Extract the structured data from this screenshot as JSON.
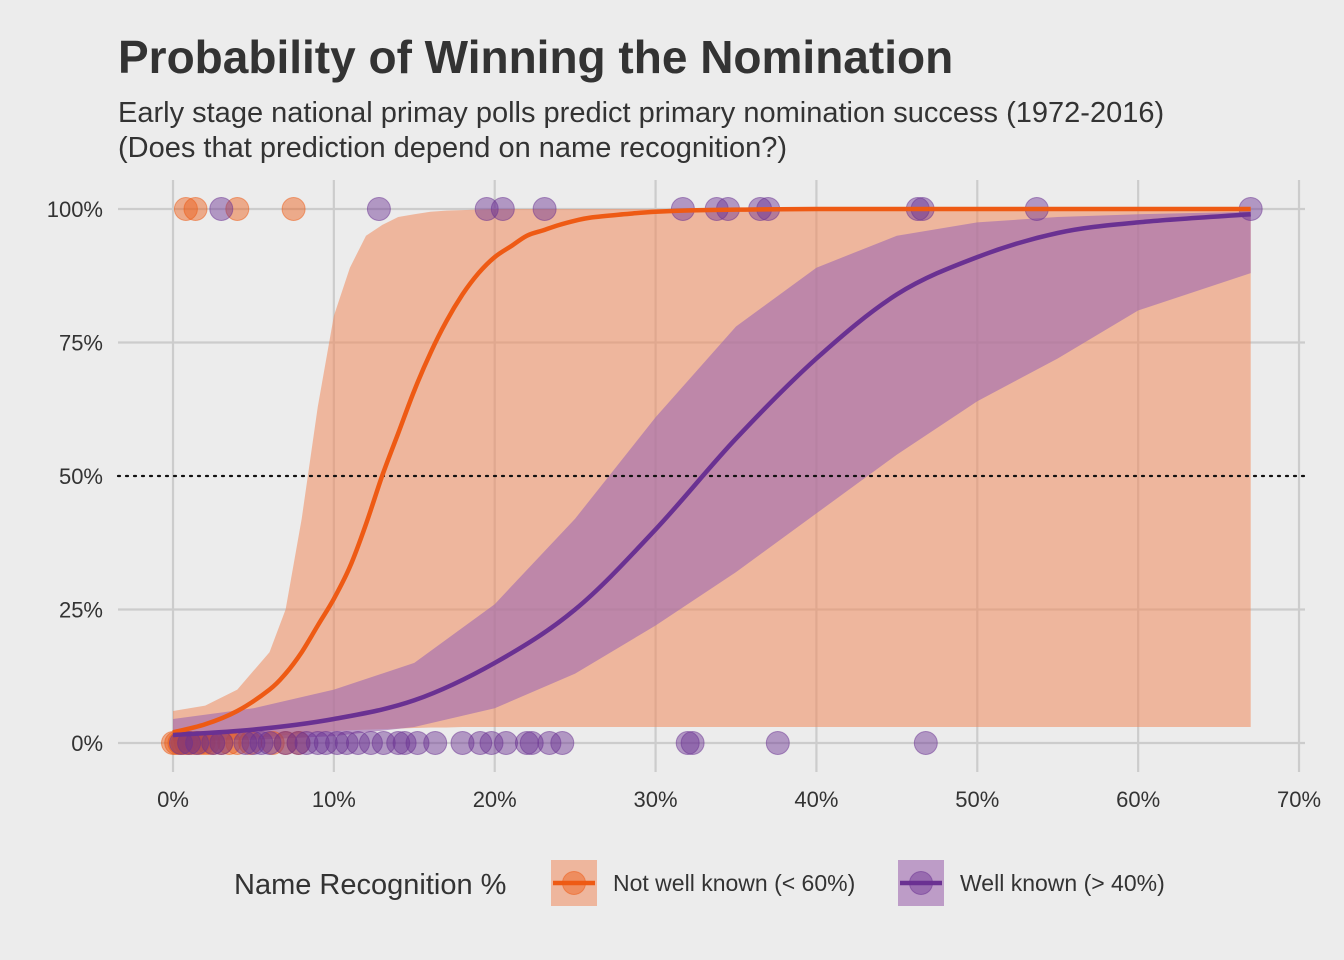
{
  "chart_data": {
    "type": "scatter",
    "title": "Probability of Winning the Nomination",
    "subtitle_lines": [
      "Early stage national primay polls predict primary nomination success (1972-2016)",
      "(Does that prediction depend on name recognition?)"
    ],
    "xlim": [
      0,
      70
    ],
    "ylim": [
      0,
      1
    ],
    "x_ticks": [
      0,
      10,
      20,
      30,
      40,
      50,
      60,
      70
    ],
    "x_tick_labels": [
      "0%",
      "10%",
      "20%",
      "30%",
      "40%",
      "50%",
      "60%",
      "70%"
    ],
    "y_ticks": [
      0,
      0.25,
      0.5,
      0.75,
      1.0
    ],
    "y_tick_labels": [
      "0%",
      "25%",
      "50%",
      "75%",
      "100%"
    ],
    "reference_line": {
      "y": 0.5,
      "style": "dotted"
    },
    "grid": true,
    "legend": {
      "title": "Name Recognition %",
      "position": "bottom",
      "entries": [
        "Not well known (< 60%)",
        "Well known (> 40%)"
      ]
    },
    "series": [
      {
        "name": "Not well known (< 60%)",
        "color": "#ee5a14",
        "ribbon_color": "#f08a5c",
        "points": [
          [
            0.0,
            0
          ],
          [
            0.2,
            0
          ],
          [
            0.4,
            0
          ],
          [
            0.6,
            0
          ],
          [
            0.8,
            0
          ],
          [
            1.0,
            0
          ],
          [
            1.3,
            0
          ],
          [
            1.6,
            0
          ],
          [
            1.9,
            0
          ],
          [
            2.2,
            0
          ],
          [
            2.5,
            0
          ],
          [
            3.0,
            0
          ],
          [
            3.5,
            0
          ],
          [
            4.0,
            0
          ],
          [
            4.8,
            0
          ],
          [
            6.2,
            0
          ],
          [
            7.0,
            0
          ],
          [
            7.8,
            0
          ],
          [
            0.8,
            1
          ],
          [
            1.4,
            1
          ],
          [
            4.0,
            1
          ],
          [
            7.5,
            1
          ]
        ],
        "fit_x": [
          0,
          2,
          4,
          6,
          7,
          8,
          9,
          10,
          11,
          12,
          13,
          14,
          15,
          16,
          17,
          18,
          19,
          20,
          21,
          22,
          23,
          24,
          25,
          26,
          28,
          30,
          33,
          36,
          40,
          45,
          50,
          55,
          60,
          67
        ],
        "fit_y": [
          0.02,
          0.035,
          0.06,
          0.1,
          0.13,
          0.17,
          0.22,
          0.27,
          0.33,
          0.41,
          0.5,
          0.58,
          0.66,
          0.73,
          0.79,
          0.84,
          0.88,
          0.91,
          0.93,
          0.95,
          0.96,
          0.97,
          0.978,
          0.984,
          0.99,
          0.995,
          0.998,
          0.999,
          1.0,
          1.0,
          1.0,
          1.0,
          1.0,
          1.0
        ],
        "band_lower": [
          0.003,
          0.005,
          0.008,
          0.012,
          0.015,
          0.018,
          0.02,
          0.022,
          0.024,
          0.025,
          0.026,
          0.027,
          0.028,
          0.029,
          0.029,
          0.03,
          0.03,
          0.03,
          0.03,
          0.03,
          0.03,
          0.03,
          0.03,
          0.03,
          0.03,
          0.03,
          0.03,
          0.03,
          0.03,
          0.03,
          0.03,
          0.03,
          0.03,
          0.03
        ],
        "band_upper": [
          0.06,
          0.07,
          0.1,
          0.17,
          0.25,
          0.42,
          0.63,
          0.8,
          0.89,
          0.95,
          0.97,
          0.985,
          0.99,
          0.995,
          0.997,
          0.998,
          0.999,
          1.0,
          1.0,
          1.0,
          1.0,
          1.0,
          1.0,
          1.0,
          1.0,
          1.0,
          1.0,
          1.0,
          1.0,
          1.0,
          1.0,
          1.0,
          1.0,
          1.0
        ]
      },
      {
        "name": "Well known (> 40%)",
        "color": "#6a3192",
        "ribbon_color": "#a06bb0",
        "points": [
          [
            0.5,
            0
          ],
          [
            1.0,
            0
          ],
          [
            1.5,
            0
          ],
          [
            2.5,
            0
          ],
          [
            3.0,
            0
          ],
          [
            4.5,
            0
          ],
          [
            5.0,
            0
          ],
          [
            5.5,
            0
          ],
          [
            6.0,
            0
          ],
          [
            7.0,
            0
          ],
          [
            7.8,
            0
          ],
          [
            8.3,
            0
          ],
          [
            9.0,
            0
          ],
          [
            9.5,
            0
          ],
          [
            10.2,
            0
          ],
          [
            10.8,
            0
          ],
          [
            11.5,
            0
          ],
          [
            12.3,
            0
          ],
          [
            13.1,
            0
          ],
          [
            14.0,
            0
          ],
          [
            14.4,
            0
          ],
          [
            15.2,
            0
          ],
          [
            16.3,
            0
          ],
          [
            18.0,
            0
          ],
          [
            19.1,
            0
          ],
          [
            19.8,
            0
          ],
          [
            20.7,
            0
          ],
          [
            22.0,
            0
          ],
          [
            22.3,
            0
          ],
          [
            23.4,
            0
          ],
          [
            24.2,
            0
          ],
          [
            32.0,
            0
          ],
          [
            32.3,
            0
          ],
          [
            37.6,
            0
          ],
          [
            46.8,
            0
          ],
          [
            3.0,
            1
          ],
          [
            12.8,
            1
          ],
          [
            19.5,
            1
          ],
          [
            20.5,
            1
          ],
          [
            23.1,
            1
          ],
          [
            31.7,
            1
          ],
          [
            33.8,
            1
          ],
          [
            34.5,
            1
          ],
          [
            36.5,
            1
          ],
          [
            37.0,
            1
          ],
          [
            46.3,
            1
          ],
          [
            46.6,
            1
          ],
          [
            53.7,
            1
          ],
          [
            67.0,
            1
          ]
        ],
        "fit_x": [
          0,
          5,
          10,
          15,
          20,
          25,
          30,
          35,
          40,
          45,
          50,
          55,
          60,
          67
        ],
        "fit_y": [
          0.015,
          0.025,
          0.045,
          0.08,
          0.15,
          0.25,
          0.4,
          0.57,
          0.72,
          0.84,
          0.91,
          0.955,
          0.975,
          0.99
        ],
        "band_lower": [
          0.003,
          0.006,
          0.013,
          0.03,
          0.065,
          0.13,
          0.22,
          0.32,
          0.43,
          0.54,
          0.64,
          0.72,
          0.81,
          0.88
        ],
        "band_upper": [
          0.045,
          0.065,
          0.1,
          0.15,
          0.26,
          0.42,
          0.61,
          0.78,
          0.89,
          0.95,
          0.975,
          0.985,
          0.99,
          0.995
        ]
      }
    ]
  }
}
